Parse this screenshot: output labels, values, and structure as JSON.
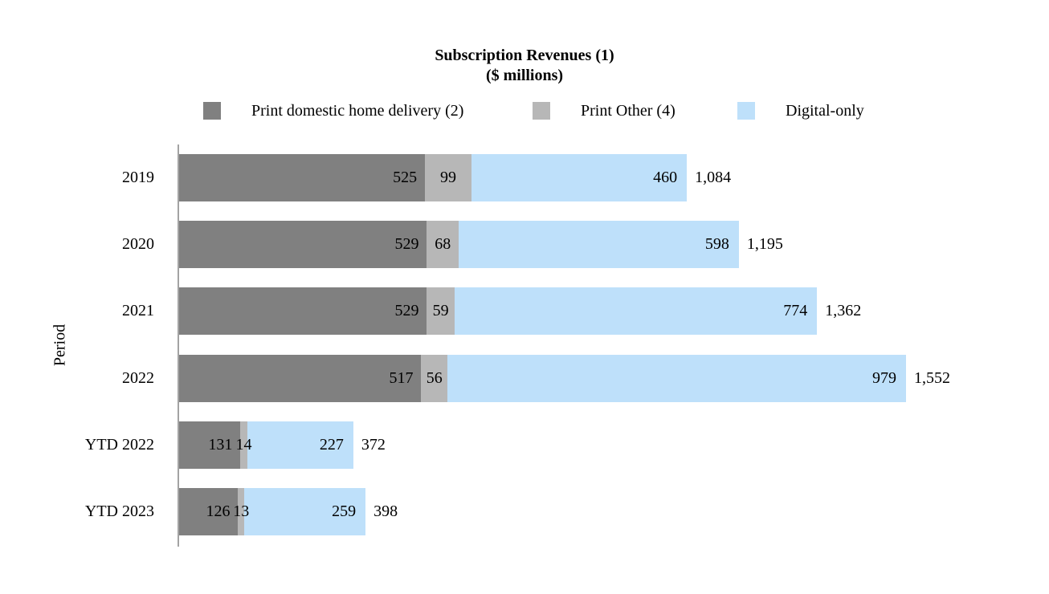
{
  "title": {
    "line1": "Subscription Revenues (1)",
    "line2": "($ millions)"
  },
  "y_axis_title": "Period",
  "legend": {
    "items": [
      {
        "key": "print-domestic-home-delivery",
        "label": "Print domestic home delivery (2)",
        "color": "#808080"
      },
      {
        "key": "print-other",
        "label": "Print Other (4)",
        "color": "#b7b7b7"
      },
      {
        "key": "digital-only",
        "label": "Digital-only",
        "color": "#bee0fa"
      }
    ]
  },
  "chart_data": {
    "type": "bar",
    "orientation": "horizontal",
    "stacked": true,
    "title": "Subscription Revenues (1)",
    "subtitle": "($ millions)",
    "ylabel": "Period",
    "xlabel": "",
    "categories": [
      "2019",
      "2020",
      "2021",
      "2022",
      "YTD 2022",
      "YTD 2023"
    ],
    "series": [
      {
        "key": "print-domestic-home-delivery",
        "name": "Print domestic home delivery (2)",
        "color": "#808080",
        "values": [
          525,
          529,
          529,
          517,
          131,
          126
        ]
      },
      {
        "key": "print-other",
        "name": "Print Other (4)",
        "color": "#b7b7b7",
        "values": [
          99,
          68,
          59,
          56,
          14,
          13
        ]
      },
      {
        "key": "digital-only",
        "name": "Digital-only",
        "color": "#bee0fa",
        "values": [
          460,
          598,
          774,
          979,
          227,
          259
        ]
      }
    ],
    "totals": [
      1084,
      1195,
      1362,
      1552,
      372,
      398
    ],
    "total_labels": [
      "1,084",
      "1,195",
      "1,362",
      "1,552",
      "372",
      "398"
    ],
    "xlim": [
      0,
      1552
    ],
    "grid": false,
    "legend_position": "top",
    "value_labels": "inside-segments",
    "axis_color": "#a3a3a3"
  }
}
